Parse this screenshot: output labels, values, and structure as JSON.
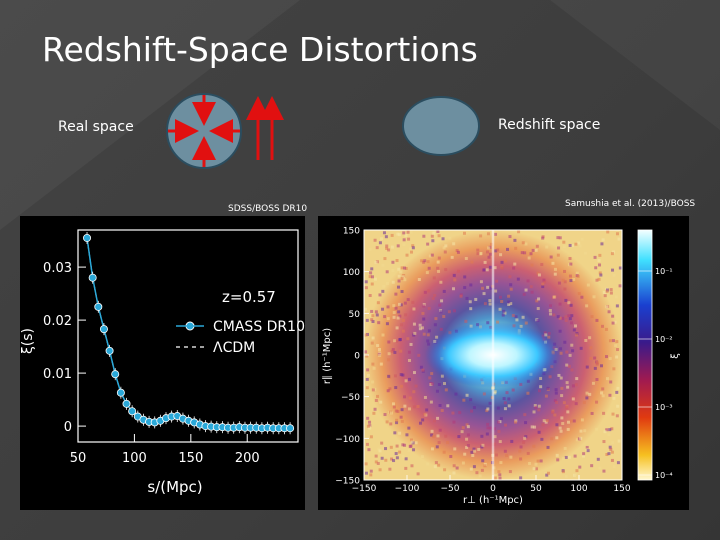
{
  "slide": {
    "title": "Redshift-Space Distortions",
    "real_space_label": "Real space",
    "redshift_space_label": "Redshift space",
    "credit_left": "SDSS/BOSS DR10",
    "credit_right": "Samushia et al. (2013)/BOSS"
  },
  "colors": {
    "circle_fill": "#6d8fa0",
    "arrow": "#e11010",
    "cmass": "#2aa8d8"
  },
  "chart_data": [
    {
      "type": "line",
      "annotation": "z=0.57",
      "xlabel": "s/(Mpc)",
      "ylabel": "ξ(s)",
      "xlim": [
        50,
        245
      ],
      "ylim": [
        -0.003,
        0.037
      ],
      "xticks": [
        "50",
        "100",
        "150",
        "200"
      ],
      "yticks": [
        "0",
        "0.01",
        "0.02",
        "0.03"
      ],
      "legend": [
        "CMASS DR10",
        "ΛCDM"
      ],
      "series": [
        {
          "name": "CMASS DR10",
          "x": [
            58,
            63,
            68,
            73,
            78,
            83,
            88,
            93,
            98,
            103,
            108,
            113,
            118,
            123,
            128,
            133,
            138,
            143,
            148,
            153,
            158,
            163,
            168,
            173,
            178,
            183,
            188,
            193,
            198,
            203,
            208,
            213,
            218,
            223,
            228,
            233,
            238
          ],
          "y": [
            0.0355,
            0.028,
            0.0225,
            0.0183,
            0.0142,
            0.0098,
            0.0063,
            0.0042,
            0.0028,
            0.0018,
            0.0012,
            0.0008,
            0.0007,
            0.001,
            0.0015,
            0.0018,
            0.0019,
            0.0014,
            0.001,
            0.0007,
            0.0003,
            0.0,
            -0.0001,
            -0.0002,
            -0.0002,
            -0.0003,
            -0.0003,
            -0.0002,
            -0.0003,
            -0.0003,
            -0.0003,
            -0.0004,
            -0.0003,
            -0.0004,
            -0.0004,
            -0.0004,
            -0.0004
          ]
        }
      ]
    },
    {
      "type": "heatmap",
      "xlabel": "r⊥ (h⁻¹Mpc)",
      "ylabel": "r∥ (h⁻¹Mpc)",
      "colorbar_label": "ξ",
      "xlim": [
        -150,
        150
      ],
      "ylim": [
        -150,
        150
      ],
      "xticks": [
        "−150",
        "−100",
        "−50",
        "0",
        "50",
        "100",
        "150"
      ],
      "yticks": [
        "150",
        "100",
        "50",
        "0",
        "−50",
        "−100",
        "−150"
      ],
      "colorbar_ticks": [
        "10⁻¹",
        "10⁻²",
        "10⁻³",
        "10⁻⁴"
      ]
    }
  ]
}
